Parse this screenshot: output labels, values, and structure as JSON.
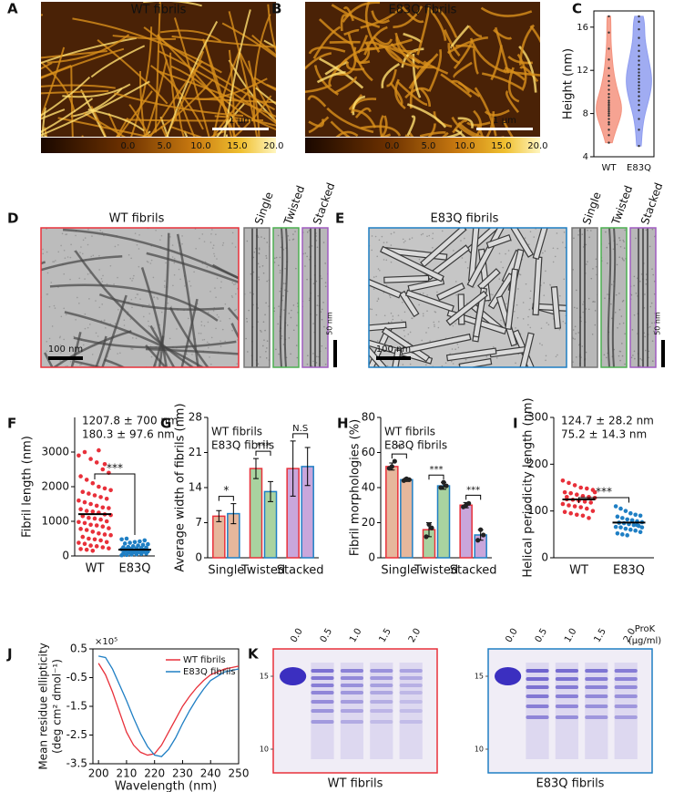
{
  "panels": {
    "A": {
      "label": "A",
      "title": "WT fibrils",
      "title_color": "#e8303a",
      "scale_bar": "1 µm",
      "colorbar_ticks": [
        "0.0",
        "5.0",
        "10.0",
        "15.0",
        "20.0"
      ]
    },
    "B": {
      "label": "B",
      "title": "E83Q fibrils",
      "title_color": "#1f7fc4",
      "scale_bar": "1 µm",
      "colorbar_ticks": [
        "0.0",
        "5.0",
        "10.0",
        "15.0",
        "20.0"
      ]
    },
    "D": {
      "label": "D",
      "title": "WT fibrils",
      "title_color": "#e8303a",
      "scale_bar": "100 nm",
      "strips": [
        "Single",
        "Twisted",
        "Stacked"
      ],
      "strip_scale_bar": "50 nm"
    },
    "E": {
      "label": "E",
      "title": "E83Q fibrils",
      "title_color": "#1f7fc4",
      "scale_bar": "100 nm",
      "strips": [
        "Single",
        "Twisted",
        "Stacked"
      ],
      "strip_scale_bar": "50 nm"
    },
    "K": {
      "label": "K",
      "unit": [
        "ProK",
        "(µg/ml)"
      ],
      "gels": [
        {
          "title": "WT fibrils",
          "color": "#e8303a",
          "lanes": [
            "0.0",
            "0.5",
            "1.0",
            "1.5",
            "2.0"
          ],
          "markers": [
            "15",
            "10"
          ]
        },
        {
          "title": "E83Q fibrils",
          "color": "#1f7fc4",
          "lanes": [
            "0.0",
            "0.5",
            "1.0",
            "1.5",
            "2.0"
          ],
          "markers": [
            "15",
            "10"
          ]
        }
      ]
    }
  },
  "chart_data": [
    {
      "type": "violin",
      "label": "C",
      "ylabel": "Height (nm)",
      "categories": [
        "WT",
        "E83Q"
      ],
      "colors": [
        "#f4937f",
        "#8f9df0"
      ],
      "values": [
        [
          5.3,
          6,
          6.5,
          7,
          7.2,
          7.5,
          7.8,
          8,
          8.2,
          8.4,
          8.6,
          8.8,
          9,
          9.2,
          9.5,
          9.8,
          10.2,
          10.6,
          11,
          11.5,
          12.2,
          13,
          14,
          15.5,
          17
        ],
        [
          5,
          6.5,
          7.5,
          8.3,
          8.8,
          9.2,
          9.6,
          10,
          10.3,
          10.6,
          10.9,
          11.2,
          11.5,
          11.8,
          12.1,
          12.5,
          12.9,
          13.3,
          13.8,
          14.3,
          15,
          15.8,
          16.5,
          17
        ]
      ],
      "ylim": [
        4,
        17.5
      ],
      "yticks": [
        4,
        8,
        12,
        16
      ]
    },
    {
      "type": "strip",
      "label": "F",
      "ylabel": "Fibril length (nm)",
      "categories": [
        "WT",
        "E83Q"
      ],
      "colors": [
        "#e8303a",
        "#1f7fc4"
      ],
      "values": [
        [
          2900,
          3000,
          2800,
          2700,
          2500,
          2400,
          2300,
          2200,
          2100,
          2000,
          1950,
          1900,
          1850,
          1800,
          1750,
          1700,
          1650,
          1600,
          1550,
          1500,
          1450,
          1400,
          1380,
          1350,
          1300,
          1280,
          1250,
          1200,
          1180,
          1150,
          1100,
          1080,
          1050,
          1000,
          980,
          950,
          900,
          880,
          850,
          800,
          780,
          750,
          700,
          650,
          620,
          600,
          550,
          500,
          480,
          450,
          400,
          380,
          350,
          300,
          280,
          250,
          220,
          200,
          180,
          150,
          3050,
          2650
        ],
        [
          20,
          30,
          40,
          50,
          60,
          70,
          80,
          90,
          100,
          110,
          120,
          130,
          140,
          150,
          160,
          170,
          180,
          190,
          200,
          210,
          220,
          230,
          240,
          250,
          260,
          280,
          300,
          320,
          340,
          360,
          380,
          400,
          420,
          450,
          480,
          500,
          150,
          160,
          170,
          180
        ]
      ],
      "means": [
        1207.8,
        180.3
      ],
      "annotations": [
        {
          "text": "1207.8 ± 700 nm",
          "color": "#e8303a"
        },
        {
          "text": "180.3 ± 97.6 nm",
          "color": "#1f7fc4"
        }
      ],
      "significance": "***",
      "ylim": [
        0,
        4000
      ],
      "yticks": [
        0,
        1000,
        2000,
        3000
      ]
    },
    {
      "type": "bar",
      "label": "G",
      "ylabel": "Average width of fibrils (nm)",
      "categories": [
        "Single",
        "Twisted",
        "Stacked"
      ],
      "fills": [
        "#e6b79c",
        "#a9d3a0",
        "#c9a6db"
      ],
      "series": [
        {
          "name": "WT fibrils",
          "color": "#e8303a",
          "values": [
            8.3,
            17.8,
            17.8
          ],
          "errors": [
            1.1,
            2.0,
            5.5
          ]
        },
        {
          "name": "E83Q fibrils",
          "color": "#1f7fc4",
          "values": [
            8.8,
            13.2,
            18.2
          ],
          "errors": [
            2.0,
            2.0,
            3.8
          ]
        }
      ],
      "significance": [
        "*",
        "***",
        "N.S"
      ],
      "ylim": [
        0,
        28
      ],
      "yticks": [
        0,
        7,
        14,
        21,
        28
      ]
    },
    {
      "type": "bar",
      "label": "H",
      "ylabel": "Fibril morphologies (%)",
      "categories": [
        "Single",
        "Twisted",
        "Stacked"
      ],
      "fills": [
        "#e6b79c",
        "#a9d3a0",
        "#c9a6db"
      ],
      "series": [
        {
          "name": "WT fibrils",
          "color": "#e8303a",
          "values": [
            52,
            16,
            30
          ],
          "errors": [
            2,
            4,
            1.5
          ],
          "points": [
            [
              51,
              52,
              55
            ],
            [
              12,
              19,
              17
            ],
            [
              29,
              30,
              31
            ]
          ]
        },
        {
          "name": "E83Q fibrils",
          "color": "#1f7fc4",
          "values": [
            44.5,
            41,
            13
          ],
          "errors": [
            1,
            2,
            3
          ],
          "points": [
            [
              44,
              45,
              44.5
            ],
            [
              40,
              43,
              41
            ],
            [
              10,
              16,
              13
            ]
          ]
        }
      ],
      "significance": [
        "*",
        "***",
        "***"
      ],
      "ylim": [
        0,
        80
      ],
      "yticks": [
        0,
        20,
        40,
        60,
        80
      ]
    },
    {
      "type": "strip",
      "label": "I",
      "ylabel": "Helical periodicity length (nm)",
      "categories": [
        "WT",
        "E83Q"
      ],
      "colors": [
        "#e8303a",
        "#1f7fc4"
      ],
      "values": [
        [
          165,
          160,
          155,
          150,
          148,
          145,
          140,
          138,
          135,
          132,
          130,
          128,
          125,
          124,
          122,
          120,
          118,
          115,
          112,
          110,
          108,
          105,
          100,
          98,
          95,
          92,
          90,
          85,
          140,
          130
        ],
        [
          110,
          105,
          100,
          95,
          92,
          90,
          88,
          85,
          82,
          80,
          78,
          76,
          75,
          74,
          72,
          70,
          68,
          66,
          65,
          62,
          60,
          58,
          55,
          52,
          50,
          48,
          80,
          70,
          65,
          75
        ]
      ],
      "means": [
        124.7,
        75.2
      ],
      "annotations": [
        {
          "text": "124.7 ± 28.2 nm",
          "color": "#e8303a"
        },
        {
          "text": "75.2 ± 14.3 nm",
          "color": "#1f7fc4"
        }
      ],
      "significance": "***",
      "ylim": [
        0,
        300
      ],
      "yticks": [
        0,
        100,
        200,
        300
      ]
    },
    {
      "type": "line",
      "label": "J",
      "ylabel": [
        "Mean residue ellipticity",
        "(deg cm² dmol⁻¹)"
      ],
      "y_multiplier": "×10⁵",
      "xlabel": "Wavelength (nm)",
      "x": [
        200,
        202.5,
        205,
        207.5,
        210,
        212.5,
        215,
        217.5,
        220,
        222.5,
        225,
        227.5,
        230,
        232.5,
        235,
        237.5,
        240,
        242.5,
        245,
        247.5,
        250
      ],
      "series": [
        {
          "name": "WT fibrils",
          "color": "#e8303a",
          "values": [
            0.0,
            -0.4,
            -1.0,
            -1.7,
            -2.4,
            -2.85,
            -3.1,
            -3.2,
            -3.15,
            -2.85,
            -2.4,
            -1.95,
            -1.5,
            -1.15,
            -0.85,
            -0.6,
            -0.4,
            -0.3,
            -0.2,
            -0.15,
            -0.1
          ]
        },
        {
          "name": "E83Q fibrils",
          "color": "#1f7fc4",
          "values": [
            0.25,
            0.2,
            -0.2,
            -0.75,
            -1.3,
            -1.9,
            -2.45,
            -2.9,
            -3.2,
            -3.25,
            -3.0,
            -2.6,
            -2.1,
            -1.65,
            -1.25,
            -0.9,
            -0.6,
            -0.45,
            -0.3,
            -0.25,
            -0.2
          ]
        }
      ],
      "legend": "upper right",
      "xlim": [
        198,
        250
      ],
      "xticks": [
        200,
        210,
        220,
        230,
        240,
        250
      ],
      "ylim": [
        -3.5,
        0.5
      ],
      "yticks": [
        0.5,
        -0.5,
        -1.5,
        -2.5,
        -3.5
      ]
    }
  ]
}
